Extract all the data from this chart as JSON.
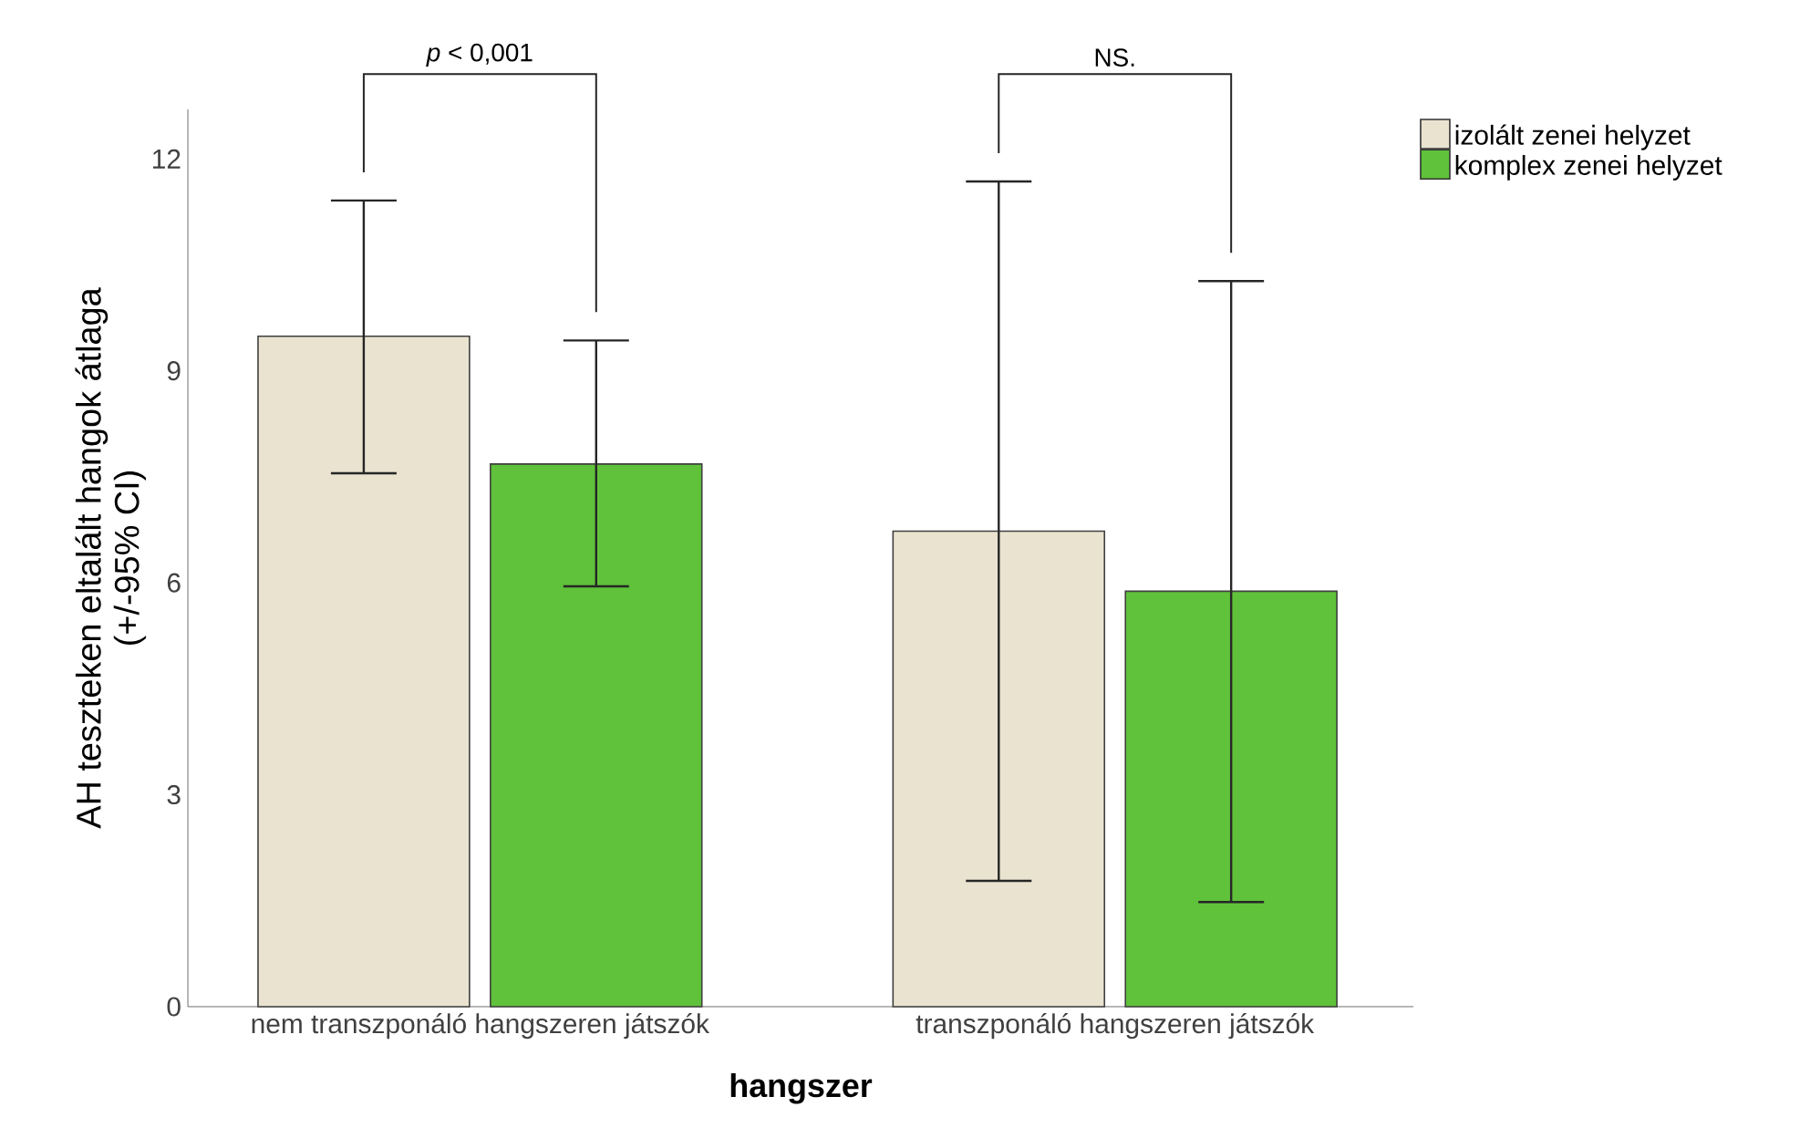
{
  "chart_data": {
    "type": "bar",
    "xlabel": "hangszer",
    "ylabel": "AH teszteken eltalált hangok átlaga (+/-95% CI)",
    "categories": [
      "nem transzponáló hangszeren játszók",
      "transzponáló hangszeren játszók"
    ],
    "series": [
      {
        "name": "izolált zenei helyzet",
        "color": "#eae3d0",
        "values": [
          9.49,
          6.73
        ],
        "errors": [
          [
            7.55,
            11.41
          ],
          [
            1.78,
            11.68
          ]
        ]
      },
      {
        "name": "komplex zenei helyzet",
        "color": "#5fc23a",
        "values": [
          7.68,
          5.88
        ],
        "errors": [
          [
            5.95,
            9.43
          ],
          [
            1.48,
            10.27
          ]
        ]
      }
    ],
    "ylim": [
      0,
      12.7
    ],
    "yticks": [
      0,
      3,
      6,
      9,
      12
    ],
    "legend": "top right",
    "annotations": [
      "*p* < 0,001",
      "NS."
    ]
  }
}
